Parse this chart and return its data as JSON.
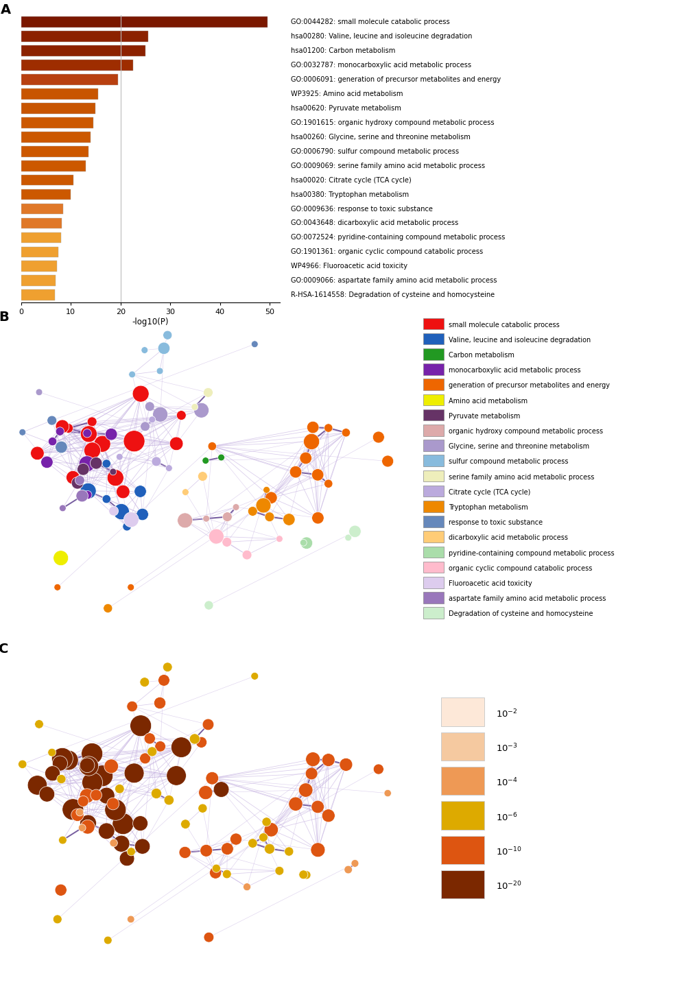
{
  "bar_labels": [
    "GO:0044282: small molecule catabolic process",
    "hsa00280: Valine, leucine and isoleucine degradation",
    "hsa01200: Carbon metabolism",
    "GO:0032787: monocarboxylic acid metabolic process",
    "GO:0006091: generation of precursor metabolites and energy",
    "WP3925: Amino acid metabolism",
    "hsa00620: Pyruvate metabolism",
    "GO:1901615: organic hydroxy compound metabolic process",
    "hsa00260: Glycine, serine and threonine metabolism",
    "GO:0006790: sulfur compound metabolic process",
    "GO:0009069: serine family amino acid metabolic process",
    "hsa00020: Citrate cycle (TCA cycle)",
    "hsa00380: Tryptophan metabolism",
    "GO:0009636: response to toxic substance",
    "GO:0043648: dicarboxylic acid metabolic process",
    "GO:0072524: pyridine-containing compound metabolic process",
    "GO:1901361: organic cyclic compound catabolic process",
    "WP4966: Fluoroacetic acid toxicity",
    "GO:0009066: aspartate family amino acid metabolic process",
    "R-HSA-1614558: Degradation of cysteine and homocysteine"
  ],
  "bar_values": [
    49.5,
    25.5,
    25.0,
    22.5,
    19.5,
    15.5,
    15.0,
    14.5,
    14.0,
    13.5,
    13.0,
    10.5,
    10.0,
    8.5,
    8.2,
    8.0,
    7.5,
    7.2,
    7.0,
    6.8
  ],
  "bar_colors": [
    "#7B1800",
    "#8C2200",
    "#8C2200",
    "#9E2D00",
    "#B84010",
    "#C85500",
    "#C85500",
    "#CC5800",
    "#CC5800",
    "#CC5800",
    "#CC5800",
    "#CC5800",
    "#CC5800",
    "#E07828",
    "#E07828",
    "#EFA030",
    "#EFA030",
    "#EFA030",
    "#EFA030",
    "#EFA030"
  ],
  "xlim": [
    0,
    50
  ],
  "xlabel": "-log10(P)",
  "vline_x": 20,
  "legend_B_items": [
    {
      "label": "small molecule catabolic process",
      "color": "#EE1111"
    },
    {
      "label": "Valine, leucine and isoleucine degradation",
      "color": "#2060BB"
    },
    {
      "label": "Carbon metabolism",
      "color": "#229922"
    },
    {
      "label": "monocarboxylic acid metabolic process",
      "color": "#7722AA"
    },
    {
      "label": "generation of precursor metabolites and energy",
      "color": "#EE6600"
    },
    {
      "label": "Amino acid metabolism",
      "color": "#EEEE00"
    },
    {
      "label": "Pyruvate metabolism",
      "color": "#663366"
    },
    {
      "label": "organic hydroxy compound metabolic process",
      "color": "#DDAAAA"
    },
    {
      "label": "Glycine, serine and threonine metabolism",
      "color": "#AA99CC"
    },
    {
      "label": "sulfur compound metabolic process",
      "color": "#88BBDD"
    },
    {
      "label": "serine family amino acid metabolic process",
      "color": "#EEEEBB"
    },
    {
      "label": "Citrate cycle (TCA cycle)",
      "color": "#BBAADD"
    },
    {
      "label": "Tryptophan metabolism",
      "color": "#EE8800"
    },
    {
      "label": "response to toxic substance",
      "color": "#6688BB"
    },
    {
      "label": "dicarboxylic acid metabolic process",
      "color": "#FFCC77"
    },
    {
      "label": "pyridine-containing compound metabolic process",
      "color": "#AADDAA"
    },
    {
      "label": "organic cyclic compound catabolic process",
      "color": "#FFBBCC"
    },
    {
      "label": "Fluoroacetic acid toxicity",
      "color": "#DDCCEE"
    },
    {
      "label": "aspartate family amino acid metabolic process",
      "color": "#9977BB"
    },
    {
      "label": "Degradation of cysteine and homocysteine",
      "color": "#CCEECC"
    }
  ],
  "pval_hex": [
    "#FDE8D8",
    "#F5C9A0",
    "#EE9955",
    "#DDAA00",
    "#DD5511",
    "#7B2800"
  ],
  "pval_labels": [
    "10-2",
    "10-3",
    "10-4",
    "10-6",
    "10-10",
    "10-20"
  ]
}
